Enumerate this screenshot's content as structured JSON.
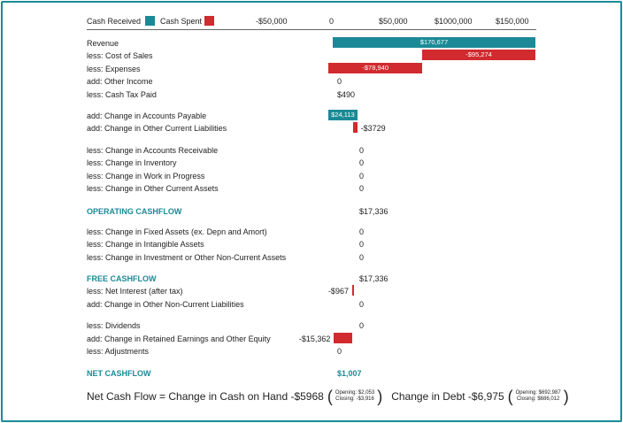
{
  "legend": {
    "received_label": "Cash Received",
    "received_color": "#1b8a96",
    "spent_label": "Cash Spent",
    "spent_color": "#d12a2f"
  },
  "axis_ticks": [
    "-$50,000",
    "0",
    "$50,000",
    "$1000,000",
    "$150,000"
  ],
  "chart_data": {
    "type": "bar",
    "orientation": "horizontal-waterfall",
    "xlim": [
      -100000,
      150000
    ],
    "tick_labels": [
      "-$50,000",
      "0",
      "$50,000",
      "$1000,000",
      "$150,000"
    ],
    "rows": [
      {
        "label": "Revenue",
        "value": 170677,
        "start": 0,
        "end": 170677,
        "kind": "received",
        "value_label": "$170,677",
        "label_inside": true
      },
      {
        "label": "less: Cost of Sales",
        "value": -95274,
        "start": 170677,
        "end": 75403,
        "kind": "spent",
        "value_label": "-$95,274",
        "label_inside": true
      },
      {
        "label": "less: Expenses",
        "value": -78940,
        "start": 75403,
        "end": -3537,
        "kind": "spent",
        "value_label": "-$78,940",
        "label_inside": true
      },
      {
        "label": "add: Other Income",
        "value": 0,
        "value_label": "0"
      },
      {
        "label": "less: Cash Tax Paid",
        "value": 490,
        "value_label": "$490"
      },
      {
        "label": "add: Change in Accounts Payable",
        "value": 24113,
        "start": -3537,
        "end": 20576,
        "kind": "received",
        "value_label": "$24,113",
        "label_inside": true
      },
      {
        "label": "add: Change in Other Current Liabilities",
        "value": -3729,
        "start": 20576,
        "end": 16847,
        "kind": "spent",
        "value_label": "-$3729"
      },
      {
        "label": "less: Change in Accounts Receivable",
        "value": 0,
        "value_label": "0"
      },
      {
        "label": "less: Change in Inventory",
        "value": 0,
        "value_label": "0"
      },
      {
        "label": "less: Change in Work in Progress",
        "value": 0,
        "value_label": "0"
      },
      {
        "label": "less: Change in Other Current Assets",
        "value": 0,
        "value_label": "0"
      },
      {
        "label": "OPERATING CASHFLOW",
        "value": 17336,
        "value_label": "$17,336",
        "section": true
      },
      {
        "label": "less: Change in Fixed Assets (ex. Depn and Amort)",
        "value": 0,
        "value_label": "0"
      },
      {
        "label": "less: Change in Intangible Assets",
        "value": 0,
        "value_label": "0"
      },
      {
        "label": "less: Change in Investment or Other Non-Current Assets",
        "value": 0,
        "value_label": "0"
      },
      {
        "label": "FREE CASHFLOW",
        "value": 17336,
        "value_label": "$17,336",
        "section": true
      },
      {
        "label": "less: Net Interest (after tax)",
        "value": -967,
        "start": 17336,
        "end": 16369,
        "kind": "spent",
        "value_label": "-$967"
      },
      {
        "label": "add: Change in Other Non-Current Liabilities",
        "value": 0,
        "value_label": "0"
      },
      {
        "label": "less: Dividends",
        "value": 0,
        "value_label": "0"
      },
      {
        "label": "add: Change in Retained Earnings and Other Equity",
        "value": -15362,
        "start": 16369,
        "end": 1007,
        "kind": "spent",
        "value_label": "-$15,362"
      },
      {
        "label": "less: Adjustments",
        "value": 0,
        "value_label": "0"
      },
      {
        "label": "NET CASHFLOW",
        "value": 1007,
        "value_label": "$1,007",
        "section": true,
        "value_colored": true
      }
    ]
  },
  "footer": {
    "prefix": "Net Cash Flow = Change in Cash on Hand -$5968",
    "cash_opening": "Opening: $2,053",
    "cash_closing": "Closing: -$3,916",
    "debt_text": "Change in Debt -$6,975",
    "debt_opening": "Opening: $692,987",
    "debt_closing": "Closing: $686,012"
  }
}
